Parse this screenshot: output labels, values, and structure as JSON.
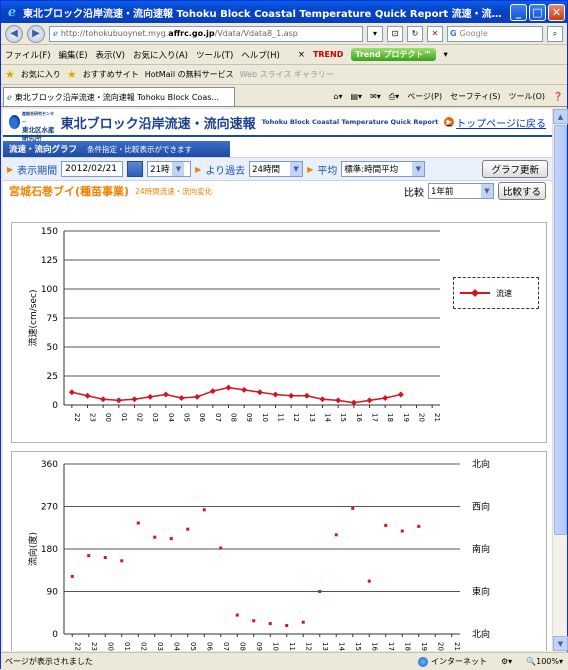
{
  "window": {
    "title": "東北ブロック沿岸流速・流向速報 Tohoku Block Coastal Temperature Quick Report 流速・流向 - Windows Inter...",
    "controls": [
      "minimize",
      "maximize",
      "close"
    ]
  },
  "addressbar": {
    "url_prefix": "http://tohokubuoynet.myg.",
    "url_domain": "affrc.go.jp",
    "url_suffix": "/Vdata/Vdata8_1.asp",
    "search_placeholder": "Google"
  },
  "menubar": {
    "items": [
      "ファイル(F)",
      "編集(E)",
      "表示(V)",
      "お気に入り(A)",
      "ツール(T)",
      "ヘルプ(H)"
    ],
    "trend_label": "TREND",
    "trend_button": "Trend プロテクト™"
  },
  "favorites": {
    "items": [
      "お気に入り",
      "おすすめサイト",
      "HotMail の無料サービス",
      "Web スライス ギャラリー"
    ]
  },
  "tabs": {
    "active": "東北ブロック沿岸流速・流向速報 Tohoku Block Coas...",
    "tools": [
      "ページ(P)",
      "セーフティ(S)",
      "ツール(O)"
    ]
  },
  "page": {
    "logo_line1": "独立行政法人 水産総合研究センター",
    "logo_line2": "東北区水産研究所",
    "headline": "東北ブロック沿岸流速・流向速報",
    "headline_en": "Tohoku Block Coastal Temperature Quick Report",
    "top_link": "トップページに戻る",
    "section_title": "流速・流向グラフ",
    "section_note": "条件指定・比較表示ができます",
    "period_label": "表示期間",
    "date_value": "2012/02/21",
    "hour_value": "21時",
    "past_label": "より過去",
    "range_value": "24時間",
    "avg_label": "平均",
    "avg_value": "標準:時間平均",
    "update_button": "グラフ更新",
    "station_name": "宮城石巻ブイ(種苗事業)",
    "station_sub": "24時間流速・流向変化",
    "compare_label": "比較",
    "compare_value": "1年前",
    "compare_button": "比較する"
  },
  "status": {
    "left": "ページが表示されました",
    "zone": "インターネット",
    "zoom": "100%"
  },
  "chart_data": [
    {
      "type": "line",
      "title": "",
      "xlabel": "",
      "ylabel": "流速(cm/sec)",
      "ylim": [
        0,
        150
      ],
      "yticks": [
        0,
        25,
        50,
        75,
        100,
        125,
        150
      ],
      "categories": [
        "22",
        "23",
        "00",
        "01",
        "02",
        "03",
        "04",
        "05",
        "06",
        "07",
        "08",
        "09",
        "10",
        "11",
        "12",
        "13",
        "14",
        "15",
        "16",
        "17",
        "18",
        "19",
        "20",
        "21"
      ],
      "series": [
        {
          "name": "流速",
          "color": "#d4141e",
          "values": [
            11,
            8,
            5,
            4,
            5,
            7,
            9,
            6,
            7,
            12,
            15,
            13,
            11,
            9,
            8,
            8,
            5,
            4,
            2,
            4,
            6,
            9,
            null,
            null
          ]
        }
      ],
      "grid": true,
      "legend": "right"
    },
    {
      "type": "scatter",
      "title": "",
      "ylabel": "流向(度)",
      "ylim": [
        0,
        360
      ],
      "yticks": [
        0,
        90,
        180,
        270,
        360
      ],
      "direction_labels": [
        "北向",
        "東向",
        "南向",
        "西向",
        "北向"
      ],
      "categories": [
        "22",
        "23",
        "00",
        "01",
        "02",
        "03",
        "04",
        "05",
        "06",
        "07",
        "08",
        "09",
        "10",
        "11",
        "12",
        "13",
        "14",
        "15",
        "16",
        "17",
        "18",
        "19",
        "20",
        "21"
      ],
      "series": [
        {
          "name": "流向",
          "color": "#d4141e",
          "values": [
            122,
            166,
            162,
            155,
            235,
            205,
            202,
            222,
            263,
            182,
            40,
            28,
            22,
            18,
            25,
            90,
            210,
            266,
            112,
            230,
            218,
            228,
            null,
            null
          ]
        }
      ],
      "grid": true
    }
  ]
}
